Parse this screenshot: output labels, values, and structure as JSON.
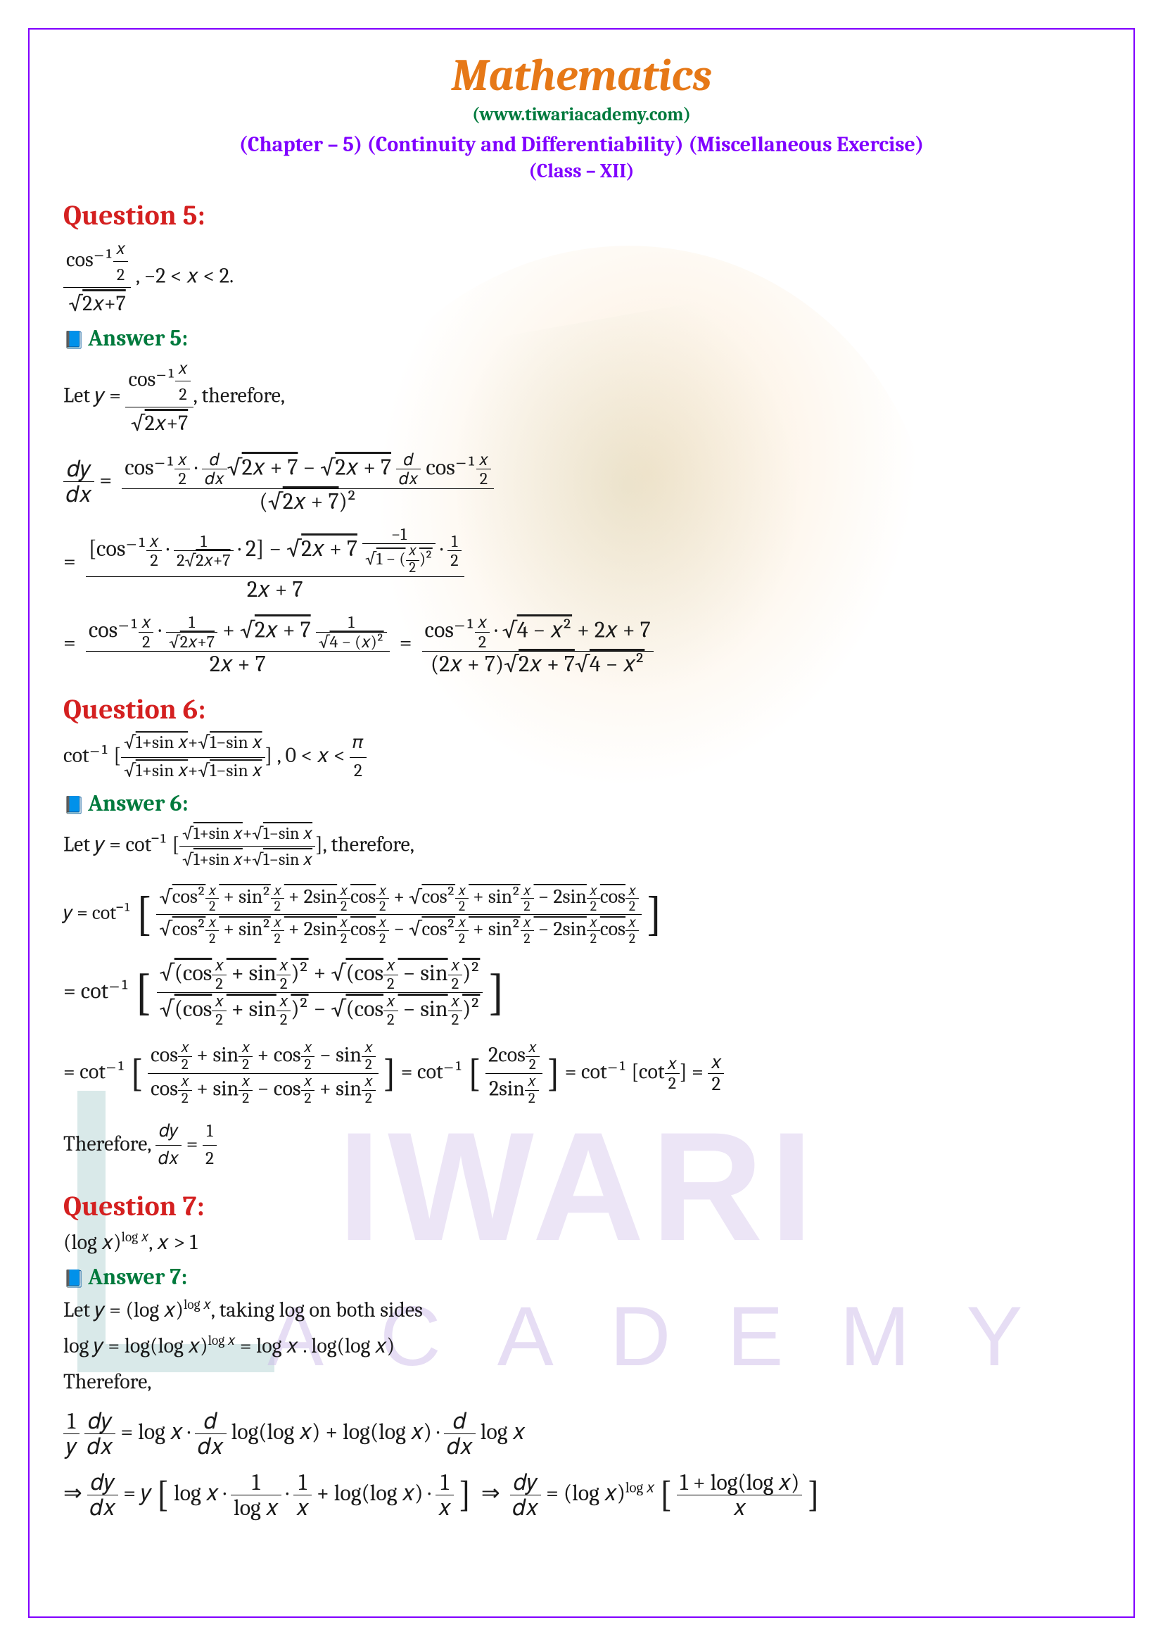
{
  "header": {
    "title": "Mathematics",
    "subtitle": "(www.tiwariacademy.com)",
    "chapter": "(Chapter – 5) (Continuity and Differentiability) (Miscellaneous Exercise)",
    "classline": "(Class – XII)"
  },
  "watermark": {
    "brand_top": "IWARI",
    "brand_bottom": "ACADEMY"
  },
  "colors": {
    "title": "#e67817",
    "subtitle": "#007a3d",
    "chapter": "#8000ff",
    "question": "#d42020",
    "answer": "#007a3d",
    "body": "#1a1a1a",
    "border": "#8000ff"
  },
  "q5": {
    "heading": "Question 5:",
    "problem": "cos⁻¹(x/2) / √(2x+7) , −2 < x < 2.",
    "answer_heading": "Answer 5:",
    "line1": "Let y = cos⁻¹(x/2) / √(2x+7), therefore,",
    "step1_lhs": "dy/dx",
    "step1_num": "cos⁻¹(x/2) · d/dx √(2x+7) − √(2x+7) · d/dx cos⁻¹(x/2)",
    "step1_den": "(√(2x+7))²",
    "step2_num": "[cos⁻¹(x/2) · 1/(2√(2x+7)) · 2] − √(2x+7) · (−1)/√(1−(x/2)²) · 1/2",
    "step2_den": "2x + 7",
    "step3_num_left": "cos⁻¹(x/2) · 1/√(2x+7) + √(2x+7) · 1/√(4−(x)²)",
    "step3_den_left": "2x + 7",
    "step3_num_right": "cos⁻¹(x/2) · √(4−x²) + 2x + 7",
    "step3_den_right": "(2x + 7)√(2x+7)√(4−x²)"
  },
  "q6": {
    "heading": "Question 6:",
    "problem": "cot⁻¹[ (√(1+sin x) + √(1−sin x)) / (√(1+sin x) + √(1−sin x)) ], 0 < x < π/2",
    "answer_heading": "Answer 6:",
    "line1": "Let y = cot⁻¹[ (√(1+sin x)+√(1−sin x)) / (√(1+sin x)+√(1−sin x)) ], therefore,",
    "step1_pre": "y = cot⁻¹",
    "step1_num": "√(cos²(x/2)+sin²(x/2)+2sin(x/2)cos(x/2)) + √(cos²(x/2)+sin²(x/2)−2sin(x/2)cos(x/2))",
    "step1_den": "√(cos²(x/2)+sin²(x/2)+2sin(x/2)cos(x/2)) − √(cos²(x/2)+sin²(x/2)−2sin(x/2)cos(x/2))",
    "step2_pre": "= cot⁻¹",
    "step2_num": "√((cos(x/2)+sin(x/2))²) + √((cos(x/2)−sin(x/2))²)",
    "step2_den": "√((cos(x/2)+sin(x/2))²) − √((cos(x/2)−sin(x/2))²)",
    "step3": "= cot⁻¹[ (cos(x/2)+sin(x/2)+cos(x/2)−sin(x/2)) / (cos(x/2)+sin(x/2)−cos(x/2)+sin(x/2)) ] = cot⁻¹[ 2cos(x/2) / 2sin(x/2) ] = cot⁻¹[cot(x/2)] = x/2",
    "result": "Therefore, dy/dx = 1/2"
  },
  "q7": {
    "heading": "Question 7:",
    "problem": "(log x)^(log x), x > 1",
    "answer_heading": "Answer 7:",
    "line1": "Let y = (log x)^(log x), taking log on both sides",
    "line2": "log y = log(log x)^(log x) = log x . log(log x)",
    "line3": "Therefore,",
    "step1": "(1/y)(dy/dx) = log x · d/dx log(log x) + log(log x) · d/dx log x",
    "step2": "⇒ dy/dx = y[ log x · 1/(log x) · 1/x + log(log x) · 1/x ]  ⇒  dy/dx = (log x)^(log x) [ (1 + log(log x)) / x ]"
  }
}
